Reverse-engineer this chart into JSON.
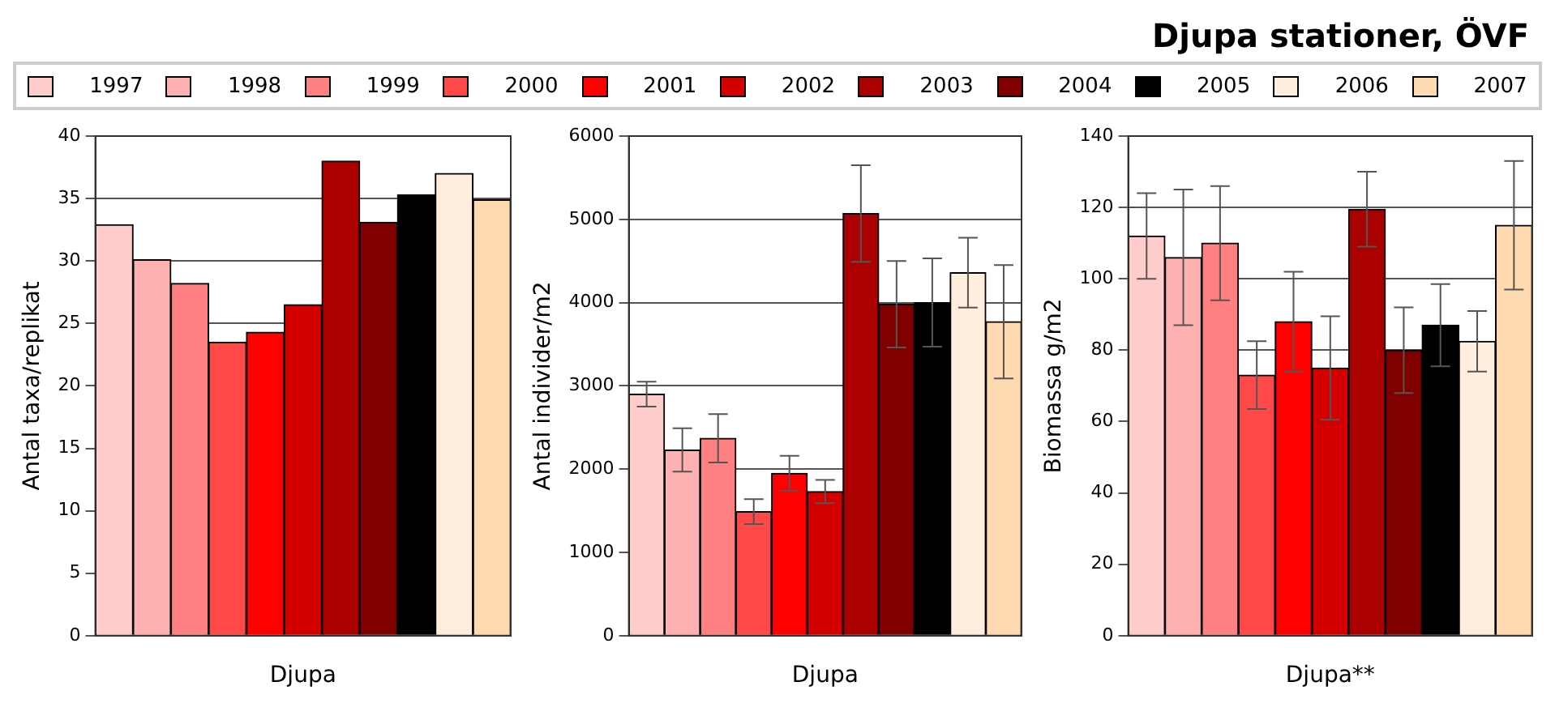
{
  "chart_data": [
    {
      "type": "bar",
      "legend": "top",
      "grid": "y",
      "xlabel": "Djupa",
      "ylabel": "Antal taxa/replikat",
      "categories": [
        null,
        null,
        null,
        null,
        null,
        null,
        null,
        null,
        null,
        null,
        null
      ],
      "ylim": [
        0,
        40
      ],
      "yticks": [
        0,
        5,
        10,
        15,
        20,
        25,
        30,
        35,
        40
      ],
      "series": [
        {
          "name": "1997",
          "color": "#ffcccc",
          "values": [
            32.9,
            null,
            null,
            null,
            null,
            null,
            null,
            null,
            null,
            null,
            null
          ]
        },
        {
          "name": "1998",
          "color": "#ffb0b0",
          "values": [
            null,
            30.1,
            null,
            null,
            null,
            null,
            null,
            null,
            null,
            null,
            null
          ]
        },
        {
          "name": "1999",
          "color": "#ff8080",
          "values": [
            null,
            null,
            28.2,
            null,
            null,
            null,
            null,
            null,
            null,
            null,
            null
          ]
        },
        {
          "name": "2000",
          "color": "#ff4848",
          "values": [
            null,
            null,
            null,
            23.5,
            null,
            null,
            null,
            null,
            null,
            null,
            null
          ]
        },
        {
          "name": "2001",
          "color": "#ff0000",
          "values": [
            null,
            null,
            null,
            null,
            24.3,
            null,
            null,
            null,
            null,
            null,
            null
          ]
        },
        {
          "name": "2002",
          "color": "#d40000",
          "values": [
            null,
            null,
            null,
            null,
            null,
            26.5,
            null,
            null,
            null,
            null,
            null
          ]
        },
        {
          "name": "2003",
          "color": "#aa0000",
          "values": [
            null,
            null,
            null,
            null,
            null,
            null,
            38.0,
            null,
            null,
            null,
            null
          ]
        },
        {
          "name": "2004",
          "color": "#800000",
          "values": [
            null,
            null,
            null,
            null,
            null,
            null,
            null,
            33.1,
            null,
            null,
            null
          ]
        },
        {
          "name": "2005",
          "color": "#000000",
          "values": [
            null,
            null,
            null,
            null,
            null,
            null,
            null,
            null,
            35.3,
            null,
            null
          ]
        },
        {
          "name": "2006",
          "color": "#ffeedd",
          "values": [
            null,
            null,
            null,
            null,
            null,
            null,
            null,
            null,
            null,
            37.0,
            null
          ]
        },
        {
          "name": "2007",
          "color": "#ffd9b0",
          "values": [
            null,
            null,
            null,
            null,
            null,
            null,
            null,
            null,
            null,
            null,
            34.9
          ]
        }
      ]
    },
    {
      "type": "bar",
      "grid": "y",
      "xlabel": "Djupa",
      "ylabel": "Antal individer/m2",
      "categories": [
        null,
        null,
        null,
        null,
        null,
        null,
        null,
        null,
        null,
        null,
        null
      ],
      "ylim": [
        0,
        6000
      ],
      "yticks": [
        0,
        1000,
        2000,
        3000,
        4000,
        5000,
        6000
      ],
      "series": [
        {
          "color": "#ffcccc",
          "values": [
            2900,
            null,
            null,
            null,
            null,
            null,
            null,
            null,
            null,
            null,
            null
          ],
          "errors": [
            150,
            null,
            null,
            null,
            null,
            null,
            null,
            null,
            null,
            null,
            null
          ]
        },
        {
          "color": "#ffb0b0",
          "values": [
            null,
            2230,
            null,
            null,
            null,
            null,
            null,
            null,
            null,
            null,
            null
          ],
          "errors": [
            null,
            260,
            null,
            null,
            null,
            null,
            null,
            null,
            null,
            null,
            null
          ]
        },
        {
          "color": "#ff8080",
          "values": [
            null,
            null,
            2370,
            null,
            null,
            null,
            null,
            null,
            null,
            null,
            null
          ],
          "errors": [
            null,
            null,
            290,
            null,
            null,
            null,
            null,
            null,
            null,
            null,
            null
          ]
        },
        {
          "color": "#ff4848",
          "values": [
            null,
            null,
            null,
            1490,
            null,
            null,
            null,
            null,
            null,
            null,
            null
          ],
          "errors": [
            null,
            null,
            null,
            150,
            null,
            null,
            null,
            null,
            null,
            null,
            null
          ]
        },
        {
          "color": "#ff0000",
          "values": [
            null,
            null,
            null,
            null,
            1950,
            null,
            null,
            null,
            null,
            null,
            null
          ],
          "errors": [
            null,
            null,
            null,
            null,
            210,
            null,
            null,
            null,
            null,
            null,
            null
          ]
        },
        {
          "color": "#d40000",
          "values": [
            null,
            null,
            null,
            null,
            null,
            1730,
            null,
            null,
            null,
            null,
            null
          ],
          "errors": [
            null,
            null,
            null,
            null,
            null,
            140,
            null,
            null,
            null,
            null,
            null
          ]
        },
        {
          "color": "#aa0000",
          "values": [
            null,
            null,
            null,
            null,
            null,
            null,
            5070,
            null,
            null,
            null,
            null
          ],
          "errors": [
            null,
            null,
            null,
            null,
            null,
            null,
            580,
            null,
            null,
            null,
            null
          ]
        },
        {
          "color": "#800000",
          "values": [
            null,
            null,
            null,
            null,
            null,
            null,
            null,
            3980,
            null,
            null,
            null
          ],
          "errors": [
            null,
            null,
            null,
            null,
            null,
            null,
            null,
            520,
            null,
            null,
            null
          ]
        },
        {
          "color": "#000000",
          "values": [
            null,
            null,
            null,
            null,
            null,
            null,
            null,
            null,
            4000,
            null,
            null
          ],
          "errors": [
            null,
            null,
            null,
            null,
            null,
            null,
            null,
            null,
            530,
            null,
            null
          ]
        },
        {
          "color": "#ffeedd",
          "values": [
            null,
            null,
            null,
            null,
            null,
            null,
            null,
            null,
            null,
            4360,
            null
          ],
          "errors": [
            null,
            null,
            null,
            null,
            null,
            null,
            null,
            null,
            null,
            420,
            null
          ]
        },
        {
          "color": "#ffd9b0",
          "values": [
            null,
            null,
            null,
            null,
            null,
            null,
            null,
            null,
            null,
            null,
            3770
          ],
          "errors": [
            null,
            null,
            null,
            null,
            null,
            null,
            null,
            null,
            null,
            null,
            680
          ]
        }
      ]
    },
    {
      "type": "bar",
      "title": "Djupa stationer, ÖVF",
      "grid": "y",
      "xlabel": "Djupa**",
      "ylabel": "Biomassa g/m2",
      "categories": [
        null,
        null,
        null,
        null,
        null,
        null,
        null,
        null,
        null,
        null,
        null
      ],
      "ylim": [
        0,
        140
      ],
      "yticks": [
        0,
        20,
        40,
        60,
        80,
        100,
        120,
        140
      ],
      "series": [
        {
          "color": "#ffcccc",
          "values": [
            112,
            null,
            null,
            null,
            null,
            null,
            null,
            null,
            null,
            null,
            null
          ],
          "errors": [
            12,
            null,
            null,
            null,
            null,
            null,
            null,
            null,
            null,
            null,
            null
          ]
        },
        {
          "color": "#ffb0b0",
          "values": [
            null,
            106,
            null,
            null,
            null,
            null,
            null,
            null,
            null,
            null,
            null
          ],
          "errors": [
            null,
            19,
            null,
            null,
            null,
            null,
            null,
            null,
            null,
            null,
            null
          ]
        },
        {
          "color": "#ff8080",
          "values": [
            null,
            null,
            110,
            null,
            null,
            null,
            null,
            null,
            null,
            null,
            null
          ],
          "errors": [
            null,
            null,
            16,
            null,
            null,
            null,
            null,
            null,
            null,
            null,
            null
          ]
        },
        {
          "color": "#ff4848",
          "values": [
            null,
            null,
            null,
            73,
            null,
            null,
            null,
            null,
            null,
            null,
            null
          ],
          "errors": [
            null,
            null,
            null,
            9.5,
            null,
            null,
            null,
            null,
            null,
            null,
            null
          ]
        },
        {
          "color": "#ff0000",
          "values": [
            null,
            null,
            null,
            null,
            88,
            null,
            null,
            null,
            null,
            null,
            null
          ],
          "errors": [
            null,
            null,
            null,
            null,
            14,
            null,
            null,
            null,
            null,
            null,
            null
          ]
        },
        {
          "color": "#d40000",
          "values": [
            null,
            null,
            null,
            null,
            null,
            75,
            null,
            null,
            null,
            null,
            null
          ],
          "errors": [
            null,
            null,
            null,
            null,
            null,
            14.5,
            null,
            null,
            null,
            null,
            null
          ]
        },
        {
          "color": "#aa0000",
          "values": [
            null,
            null,
            null,
            null,
            null,
            null,
            119.5,
            null,
            null,
            null,
            null
          ],
          "errors": [
            null,
            null,
            null,
            null,
            null,
            null,
            10.5,
            null,
            null,
            null,
            null
          ]
        },
        {
          "color": "#800000",
          "values": [
            null,
            null,
            null,
            null,
            null,
            null,
            null,
            80,
            null,
            null,
            null
          ],
          "errors": [
            null,
            null,
            null,
            null,
            null,
            null,
            null,
            12,
            null,
            null,
            null
          ]
        },
        {
          "color": "#000000",
          "values": [
            null,
            null,
            null,
            null,
            null,
            null,
            null,
            null,
            87,
            null,
            null
          ],
          "errors": [
            null,
            null,
            null,
            null,
            null,
            null,
            null,
            null,
            11.5,
            null,
            null
          ]
        },
        {
          "color": "#ffeedd",
          "values": [
            null,
            null,
            null,
            null,
            null,
            null,
            null,
            null,
            null,
            82.5,
            null
          ],
          "errors": [
            null,
            null,
            null,
            null,
            null,
            null,
            null,
            null,
            null,
            8.5,
            null
          ]
        },
        {
          "color": "#ffd9b0",
          "values": [
            null,
            null,
            null,
            null,
            null,
            null,
            null,
            null,
            null,
            null,
            115
          ],
          "errors": [
            null,
            null,
            null,
            null,
            null,
            null,
            null,
            null,
            null,
            null,
            18
          ]
        }
      ]
    }
  ]
}
